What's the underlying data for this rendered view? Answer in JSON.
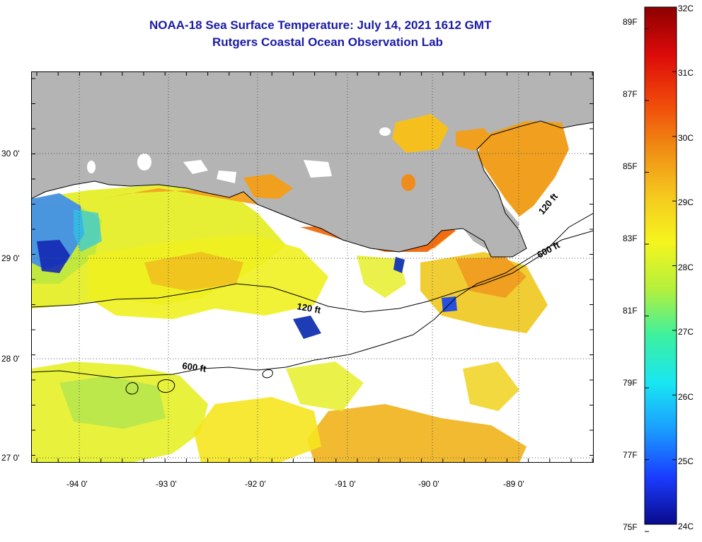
{
  "title": {
    "line1": "NOAA-18 Sea Surface Temperature:  July 14, 2021 1612 GMT",
    "line2": "Rutgers Coastal Ocean Observation Lab"
  },
  "map": {
    "land_color": "#b4b4b4",
    "nodata_color": "#ffffff",
    "latitude_labels": [
      "30 0'",
      "29 0'",
      "28 0'",
      "27 0'"
    ],
    "longitude_labels": [
      "-94 0'",
      "-93 0'",
      "-92 0'",
      "-91 0'",
      "-90 0'",
      "-89 0'"
    ],
    "lat_range": [
      26.95,
      30.75
    ],
    "lon_range": [
      -94.55,
      -88.0
    ],
    "isobaths": [
      {
        "label": "120 ft"
      },
      {
        "label": "600 ft"
      },
      {
        "label": "120 ft"
      },
      {
        "label": "600 ft"
      }
    ]
  },
  "colorbar": {
    "celsius_labels": [
      "32C",
      "31C",
      "30C",
      "29C",
      "28C",
      "27C",
      "26C",
      "25C",
      "24C"
    ],
    "fahrenheit_labels": [
      "89F",
      "87F",
      "85F",
      "83F",
      "81F",
      "79F",
      "77F",
      "75F"
    ],
    "range_c": [
      24,
      32
    ],
    "colors": [
      "#0a0a8c",
      "#1a3cff",
      "#1a9cff",
      "#19e6f2",
      "#3cf0a0",
      "#b4f03c",
      "#f5f51e",
      "#f5c81e",
      "#f08c14",
      "#f0460a",
      "#dc0a0a",
      "#8c0000"
    ]
  }
}
